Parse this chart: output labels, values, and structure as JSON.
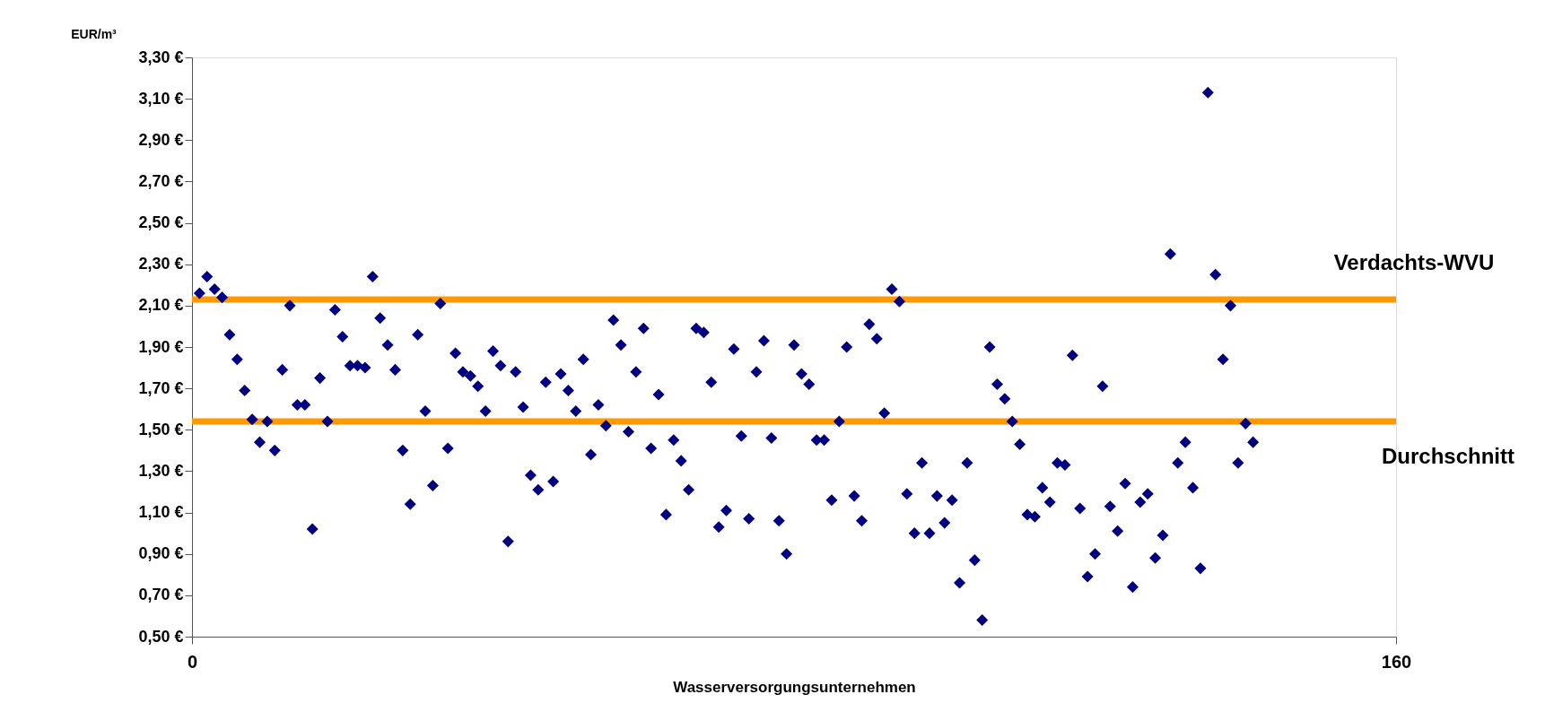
{
  "chart_data": {
    "type": "scatter",
    "xlabel": "Wasserversorgungsunternehmen",
    "ylabel": "EUR/m³",
    "xlim": [
      0,
      160
    ],
    "xticks": [
      0,
      160
    ],
    "ylim": [
      0.5,
      3.3
    ],
    "yticks": [
      {
        "value": 0.5,
        "label": "0,50 €"
      },
      {
        "value": 0.7,
        "label": "0,70 €"
      },
      {
        "value": 0.9,
        "label": "0,90 €"
      },
      {
        "value": 1.1,
        "label": "1,10 €"
      },
      {
        "value": 1.3,
        "label": "1,30 €"
      },
      {
        "value": 1.5,
        "label": "1,50 €"
      },
      {
        "value": 1.7,
        "label": "1,70 €"
      },
      {
        "value": 1.9,
        "label": "1,90 €"
      },
      {
        "value": 2.1,
        "label": "2,10 €"
      },
      {
        "value": 2.3,
        "label": "2,30 €"
      },
      {
        "value": 2.5,
        "label": "2,50 €"
      },
      {
        "value": 2.7,
        "label": "2,70 €"
      },
      {
        "value": 2.9,
        "label": "2,90 €"
      },
      {
        "value": 3.1,
        "label": "3,10 €"
      },
      {
        "value": 3.3,
        "label": "3,30 €"
      }
    ],
    "marker": "diamond",
    "series": [
      {
        "color": "#000080",
        "x": [
          1,
          2,
          3,
          4,
          5,
          6,
          7,
          8,
          9,
          10,
          11,
          12,
          13,
          14,
          15,
          16,
          17,
          18,
          19,
          20,
          21,
          22,
          23,
          24,
          25,
          26,
          27,
          28,
          29,
          30,
          31,
          32,
          33,
          34,
          35,
          36,
          37,
          38,
          39,
          40,
          41,
          42,
          43,
          44,
          45,
          46,
          47,
          48,
          49,
          50,
          51,
          52,
          53,
          54,
          55,
          56,
          57,
          58,
          59,
          60,
          61,
          62,
          63,
          64,
          65,
          66,
          67,
          68,
          69,
          70,
          71,
          72,
          73,
          74,
          75,
          76,
          77,
          78,
          79,
          80,
          81,
          82,
          83,
          84,
          85,
          86,
          87,
          88,
          89,
          90,
          91,
          92,
          93,
          94,
          95,
          96,
          97,
          98,
          99,
          100,
          101,
          102,
          103,
          104,
          105,
          106,
          107,
          108,
          109,
          110,
          111,
          112,
          113,
          114,
          115,
          116,
          117,
          118,
          119,
          120,
          121,
          122,
          123,
          124,
          125,
          126,
          127,
          128,
          129,
          130,
          131,
          132,
          133,
          134,
          135,
          136,
          137,
          138,
          139,
          140,
          141
        ],
        "values": [
          2.16,
          2.24,
          2.18,
          2.14,
          1.96,
          1.84,
          1.69,
          1.55,
          1.44,
          1.54,
          1.4,
          1.79,
          2.1,
          1.62,
          1.62,
          1.02,
          1.75,
          1.54,
          2.08,
          1.95,
          1.81,
          1.81,
          1.8,
          2.24,
          2.04,
          1.91,
          1.79,
          1.4,
          1.14,
          1.96,
          1.59,
          1.23,
          2.11,
          1.41,
          1.87,
          1.78,
          1.76,
          1.71,
          1.59,
          1.88,
          1.81,
          0.96,
          1.78,
          1.61,
          1.28,
          1.21,
          1.73,
          1.25,
          1.77,
          1.69,
          1.59,
          1.84,
          1.38,
          1.62,
          1.52,
          2.03,
          1.91,
          1.49,
          1.78,
          1.99,
          1.41,
          1.67,
          1.09,
          1.45,
          1.35,
          1.21,
          1.99,
          1.97,
          1.73,
          1.03,
          1.11,
          1.89,
          1.47,
          1.07,
          1.78,
          1.93,
          1.46,
          1.06,
          0.9,
          1.91,
          1.77,
          1.72,
          1.45,
          1.45,
          1.16,
          1.54,
          1.9,
          1.18,
          1.06,
          2.01,
          1.94,
          1.58,
          2.18,
          2.12,
          1.19,
          1.0,
          1.34,
          1.0,
          1.18,
          1.05,
          1.16,
          0.76,
          1.34,
          0.87,
          0.58,
          1.9,
          1.72,
          1.65,
          1.54,
          1.43,
          1.09,
          1.08,
          1.22,
          1.15,
          1.34,
          1.33,
          1.86,
          1.12,
          0.79,
          0.9,
          1.71,
          1.13,
          1.01,
          1.24,
          0.74,
          1.15,
          1.19,
          0.88,
          0.99,
          2.35,
          1.34,
          1.44,
          1.22,
          0.83,
          3.13,
          2.25,
          1.84,
          2.1,
          1.34,
          1.53,
          1.44
        ]
      }
    ],
    "ref_lines": [
      {
        "axis": "y",
        "value": 2.13,
        "label": "Verdachts-WVU",
        "color": "#ff9900"
      },
      {
        "axis": "y",
        "value": 1.54,
        "label": "Durchschnitt",
        "color": "#ff9900"
      }
    ]
  }
}
